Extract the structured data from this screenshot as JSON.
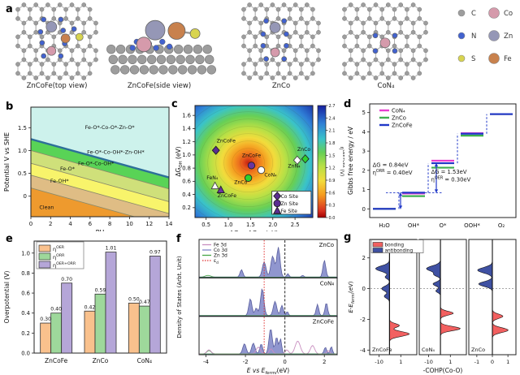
{
  "figure": {
    "panel_labels": {
      "a": "a",
      "b": "b",
      "c": "c",
      "d": "d",
      "e": "e",
      "f": "f",
      "g": "g"
    }
  },
  "panel_a": {
    "captions": [
      "ZnCoFe(top view)",
      "ZnCoFe(side view)",
      "ZnCo",
      "CoN₄"
    ],
    "atom_legend": [
      {
        "label": "C",
        "color": "#9d9d9d",
        "size": "small"
      },
      {
        "label": "Co",
        "color": "#d59aab",
        "size": "large"
      },
      {
        "label": "N",
        "color": "#4262cf",
        "size": "small"
      },
      {
        "label": "Zn",
        "color": "#9597b6",
        "size": "large"
      },
      {
        "label": "S",
        "color": "#d8d44f",
        "size": "small"
      },
      {
        "label": "Fe",
        "color": "#c8814d",
        "size": "large"
      }
    ]
  },
  "chart_data": [
    {
      "id": "b",
      "type": "area",
      "xlabel": "PH",
      "ylabel": "Potential V vs SHE",
      "xlim": [
        0,
        14
      ],
      "ylim": [
        -0.45,
        1.95
      ],
      "xticks": [
        0,
        2,
        4,
        6,
        8,
        10,
        12,
        14
      ],
      "ytick_labels": [
        "0",
        "0.5",
        "1.0",
        "1.5"
      ],
      "ytick_vals": [
        0,
        0.5,
        1.0,
        1.5
      ],
      "slope_V_per_pH": -0.06,
      "boundaries_V_at_pH0": [
        0.18,
        0.46,
        0.72,
        1.0,
        1.25
      ],
      "regions": [
        {
          "label": "Clean",
          "color": "#ee9a2e",
          "label_at": [
            1.6,
            -0.28
          ]
        },
        {
          "label": "Fe-OH*",
          "color": "#dfbd85",
          "label_at": [
            2.9,
            0.3
          ]
        },
        {
          "label": "Fe-O*",
          "color": "#f8f46b",
          "label_at": [
            3.7,
            0.56
          ]
        },
        {
          "label": "Fe-O*-Co-OH*",
          "color": "#cfe07a",
          "label_at": [
            6.6,
            0.68
          ]
        },
        {
          "label": "Fe-O*-Co-OH*-Zn-OH*",
          "color": "#59d356",
          "label_at": [
            8.6,
            0.93
          ]
        },
        {
          "label": "Fe-O*-Co-O*-Zn-O*",
          "color": "#cdf2ec",
          "label_at": [
            8.0,
            1.47
          ]
        }
      ],
      "boundary_line_color": "#8a8a6a",
      "top_boundary_color": "#2d6f99"
    },
    {
      "id": "c",
      "type": "contour_scatter",
      "xlabel_parts": [
        {
          "t": "ΔG"
        },
        {
          "t": "O",
          "s": "sub"
        },
        {
          "t": " - ΔG"
        },
        {
          "t": "OH",
          "s": "sub"
        },
        {
          "t": " (eV)"
        }
      ],
      "ylabel_parts": [
        {
          "t": "ΔG"
        },
        {
          "t": "OH",
          "s": "sub"
        },
        {
          "t": " (eV)"
        }
      ],
      "xlim": [
        0.25,
        2.9
      ],
      "ylim": [
        0.05,
        1.75
      ],
      "xticks": [
        0.5,
        1.0,
        1.5,
        2.0,
        2.5
      ],
      "yticks": [
        0.2,
        0.4,
        0.6,
        0.8,
        1.0,
        1.2,
        1.4,
        1.6
      ],
      "hot_center": [
        1.45,
        0.88
      ],
      "radial_stops": [
        [
          0,
          "#c42014"
        ],
        [
          0.07,
          "#e85a1c"
        ],
        [
          0.17,
          "#f59b1f"
        ],
        [
          0.29,
          "#f2dc3c"
        ],
        [
          0.41,
          "#b7e046"
        ],
        [
          0.54,
          "#67cf56"
        ],
        [
          0.67,
          "#3ac3c9"
        ],
        [
          0.81,
          "#2f7fd6"
        ],
        [
          1,
          "#16209f"
        ]
      ],
      "colorbar": {
        "ticks": [
          "0.0",
          "0.3",
          "0.6",
          "0.9",
          "1.2",
          "1.5",
          "1.8",
          "2.1",
          "2.4",
          "2.7"
        ],
        "stops": [
          [
            0,
            "#a00000"
          ],
          [
            0.06,
            "#d83020"
          ],
          [
            0.2,
            "#f59b1f"
          ],
          [
            0.33,
            "#f2dc3c"
          ],
          [
            0.46,
            "#b7e046"
          ],
          [
            0.58,
            "#67cf56"
          ],
          [
            0.7,
            "#3ac3c9"
          ],
          [
            0.84,
            "#2f7fd6"
          ],
          [
            1,
            "#16209f"
          ]
        ],
        "label_parts": [
          {
            "t": "η"
          },
          {
            "t": "OER+ORR",
            "s": "sup"
          },
          {
            "t": " (V)"
          }
        ]
      },
      "points": [
        {
          "label": "ZnCoFe",
          "x": 0.72,
          "y": 1.07,
          "marker": "diamond",
          "fill": "#5a2d91",
          "lx": 0.95,
          "ly": 1.19
        },
        {
          "label": "ZnCoFe",
          "x": 1.52,
          "y": 0.84,
          "marker": "circle",
          "fill": "#6a35a0",
          "lx": 1.52,
          "ly": 0.97
        },
        {
          "label": "CoN₄",
          "x": 1.74,
          "y": 0.77,
          "marker": "circle",
          "fill": "#ffffff",
          "lx": 1.95,
          "ly": 0.67
        },
        {
          "label": "ZnCo",
          "x": 1.45,
          "y": 0.65,
          "marker": "circle",
          "fill": "#2fd12f",
          "lx": 1.28,
          "ly": 0.56
        },
        {
          "label": "ZnCo",
          "x": 2.73,
          "y": 0.94,
          "marker": "diamond",
          "fill": "#2fd12f",
          "lx": 2.7,
          "ly": 1.06
        },
        {
          "label": "ZnN₄",
          "x": 2.55,
          "y": 0.92,
          "marker": "diamond",
          "fill": "#ffffff",
          "lx": 2.48,
          "ly": 0.81
        },
        {
          "label": "FeN₄",
          "x": 0.7,
          "y": 0.53,
          "marker": "triangle",
          "fill": "#ffffff",
          "lx": 0.64,
          "ly": 0.63
        },
        {
          "label": "ZnCoFe",
          "x": 0.83,
          "y": 0.47,
          "marker": "triangle",
          "fill": "#6a35a0",
          "lx": 0.97,
          "ly": 0.36
        }
      ],
      "legend": {
        "marker_fill": "#5a2d91",
        "items": [
          {
            "label": "Co Site",
            "marker": "diamond"
          },
          {
            "label": "Zn Site",
            "marker": "circle"
          },
          {
            "label": "Fe Site",
            "marker": "triangle"
          }
        ]
      }
    },
    {
      "id": "d",
      "type": "step",
      "ylabel": "Gibbs free energy / eV",
      "categories": [
        "H₂O",
        "OH*",
        "O*",
        "OOH*",
        "O₂"
      ],
      "yticks": [
        0,
        1,
        2,
        3,
        4,
        5
      ],
      "ylim": [
        -0.45,
        5.45
      ],
      "series": [
        {
          "name": "CoN₄",
          "color": "#e83fd0",
          "values": [
            0,
            0.8,
            2.5,
            3.93,
            4.92
          ]
        },
        {
          "name": "ZnCo",
          "color": "#3faf4f",
          "values": [
            0,
            0.66,
            2.14,
            3.8,
            4.92
          ]
        },
        {
          "name": "ZnCoFe",
          "color": "#2038c8",
          "values": [
            0,
            0.84,
            2.37,
            3.9,
            4.92
          ]
        }
      ],
      "annotations": [
        {
          "xfrac": 0.02,
          "y": 2.18,
          "lines": [
            [
              {
                "t": "ΔG = 0.84eV"
              }
            ],
            [
              {
                "t": "η"
              },
              {
                "t": "ORR",
                "s": "sup"
              },
              {
                "t": " = 0.40eV"
              }
            ]
          ]
        },
        {
          "xfrac": 0.42,
          "y": 1.82,
          "lines": [
            [
              {
                "t": "ΔG = 1.53eV"
              }
            ],
            [
              {
                "t": "η"
              },
              {
                "t": "OER",
                "s": "sup"
              },
              {
                "t": " = 0.30eV"
              }
            ]
          ]
        }
      ]
    },
    {
      "id": "e",
      "type": "bar",
      "ylabel": "Overpotential (V)",
      "categories": [
        "ZnCoFe",
        "ZnCo",
        "CoN₄"
      ],
      "ytick_labels": [
        "0.0",
        "0.2",
        "0.4",
        "0.6",
        "0.8",
        "1.0"
      ],
      "ytick_vals": [
        0,
        0.2,
        0.4,
        0.6,
        0.8,
        1.0
      ],
      "ylim": [
        0,
        1.12
      ],
      "series": [
        {
          "name_parts": [
            {
              "t": "η"
            },
            {
              "t": "OER",
              "s": "sup"
            }
          ],
          "color": "#f9c18d",
          "values": [
            0.3,
            0.42,
            0.5
          ]
        },
        {
          "name_parts": [
            {
              "t": "η"
            },
            {
              "t": "ORR",
              "s": "sup"
            }
          ],
          "color": "#9ed89b",
          "values": [
            0.4,
            0.59,
            0.47
          ]
        },
        {
          "name_parts": [
            {
              "t": "η"
            },
            {
              "t": "OER+ORR",
              "s": "sup"
            }
          ],
          "color": "#b5a6d8",
          "values": [
            0.7,
            1.01,
            0.97
          ]
        }
      ]
    },
    {
      "id": "f",
      "type": "dos",
      "xlabel_parts": [
        {
          "t": "E vs E",
          "i": true
        },
        {
          "t": "fermi",
          "s": "sub",
          "i": true
        },
        {
          "t": "(eV)"
        }
      ],
      "ylabel": "Density of States (Arbt. Unit)",
      "xlim": [
        -4.35,
        2.65
      ],
      "xticks": [
        -4,
        -2,
        0,
        2
      ],
      "fermi_line_x": 0,
      "ed_line_x": -1.05,
      "fill_color": "#8a90cc",
      "line_color": "#5a5f9e",
      "fe_color": "#c98fc0",
      "zn_color": "#46a546",
      "ed_color": "#e03030",
      "legend": [
        {
          "label": "Fe 3d",
          "color": "#c98fc0",
          "style": "line"
        },
        {
          "label": "Co 3d",
          "color": "#8087c8",
          "style": "line"
        },
        {
          "label": "Zn 3d",
          "color": "#46a546",
          "style": "line"
        },
        {
          "label_parts": [
            {
              "t": "ε"
            },
            {
              "t": "d",
              "s": "sub"
            }
          ],
          "color": "#e03030",
          "style": "dotted"
        }
      ],
      "panels": [
        {
          "label": "ZnCo",
          "co": [
            [
              -2.2,
              0.22,
              0.1
            ],
            [
              -1.05,
              0.45,
              0.13
            ],
            [
              -0.62,
              0.62,
              0.13
            ],
            [
              -0.33,
              0.88,
              0.12
            ],
            [
              0.15,
              0.1,
              0.08
            ],
            [
              0.9,
              0.05,
              0.08
            ],
            [
              2.0,
              0.5,
              0.1
            ]
          ],
          "zn": [
            [
              -3.9,
              0.05,
              0.2
            ]
          ],
          "fe": []
        },
        {
          "label": "CoN₄",
          "co": [
            [
              -1.75,
              0.5,
              0.11
            ],
            [
              -1.45,
              0.22,
              0.1
            ],
            [
              -1.15,
              0.8,
              0.12
            ],
            [
              -0.5,
              0.42,
              0.12
            ],
            [
              -0.15,
              0.3,
              0.1
            ],
            [
              0.12,
              0.12,
              0.07
            ],
            [
              1.65,
              0.33,
              0.09
            ],
            [
              2.1,
              0.38,
              0.09
            ]
          ],
          "zn": [],
          "fe": []
        },
        {
          "label": "ZnCoFe",
          "co": [
            [
              -2.05,
              0.3,
              0.12
            ],
            [
              -1.6,
              0.32,
              0.12
            ],
            [
              -1.2,
              0.3,
              0.1
            ],
            [
              -0.72,
              0.75,
              0.12
            ],
            [
              -0.42,
              0.5,
              0.1
            ],
            [
              -0.22,
              0.45,
              0.08
            ],
            [
              2.05,
              0.2,
              0.09
            ],
            [
              2.35,
              0.22,
              0.08
            ]
          ],
          "zn": [
            [
              -3.85,
              0.1,
              0.15
            ]
          ],
          "fe": [
            [
              -3.85,
              0.12,
              0.15
            ],
            [
              -1.35,
              0.2,
              0.15
            ],
            [
              -0.7,
              0.15,
              0.12
            ],
            [
              0.1,
              0.12,
              0.12
            ],
            [
              0.65,
              0.38,
              0.18
            ],
            [
              1.4,
              0.25,
              0.15
            ],
            [
              2.2,
              0.1,
              0.1
            ]
          ]
        }
      ]
    },
    {
      "id": "g",
      "type": "cohp",
      "xlabel": "-COHP(Co-O)",
      "ylabel_parts": [
        {
          "t": "E-E",
          "i": true
        },
        {
          "t": "fermi",
          "s": "sub",
          "i": true
        },
        {
          "t": "(eV)"
        }
      ],
      "ylim": [
        -4.3,
        3.2
      ],
      "yticks": [
        2,
        0,
        -2,
        -4
      ],
      "bond_color": "#f26060",
      "anti_color": "#3f51a3",
      "legend": [
        {
          "label": "bonding",
          "color": "#f26060"
        },
        {
          "label": "antibonding",
          "color": "#3f51a3"
        }
      ],
      "panels": [
        {
          "label": "ZnCoFe",
          "baseline": 0.42,
          "xticks": [
            [
              "-10",
              0.2
            ],
            [
              "1",
              0.66
            ]
          ],
          "anti": [
            [
              1.3,
              0.8,
              0.25
            ],
            [
              0.75,
              0.25,
              0.15
            ],
            [
              0.0,
              0.45,
              0.22
            ],
            [
              -0.5,
              0.3,
              0.18
            ]
          ],
          "bond": [
            [
              -2.4,
              0.4,
              0.18
            ],
            [
              -2.95,
              0.8,
              0.22
            ]
          ]
        },
        {
          "label": "CoN₄",
          "baseline": 0.45,
          "xticks": [
            [
              "-10",
              0.2
            ],
            [
              "1",
              0.66
            ]
          ],
          "anti": [
            [
              1.3,
              0.75,
              0.25
            ],
            [
              0.9,
              0.3,
              0.15
            ],
            [
              0.3,
              0.4,
              0.18
            ],
            [
              -0.15,
              0.25,
              0.15
            ]
          ],
          "bond": [
            [
              -1.6,
              0.55,
              0.18
            ],
            [
              -2.6,
              0.85,
              0.2
            ]
          ]
        },
        {
          "label": "ZnCo",
          "baseline": 0.5,
          "xticks": [
            [
              "-1",
              0.17
            ],
            [
              "0",
              0.5
            ],
            [
              "1",
              0.83
            ]
          ],
          "anti": [
            [
              1.2,
              0.7,
              0.25
            ],
            [
              0.3,
              0.65,
              0.22
            ]
          ],
          "bond": [
            [
              -1.8,
              0.5,
              0.2
            ],
            [
              -2.7,
              0.75,
              0.22
            ]
          ]
        }
      ]
    }
  ]
}
